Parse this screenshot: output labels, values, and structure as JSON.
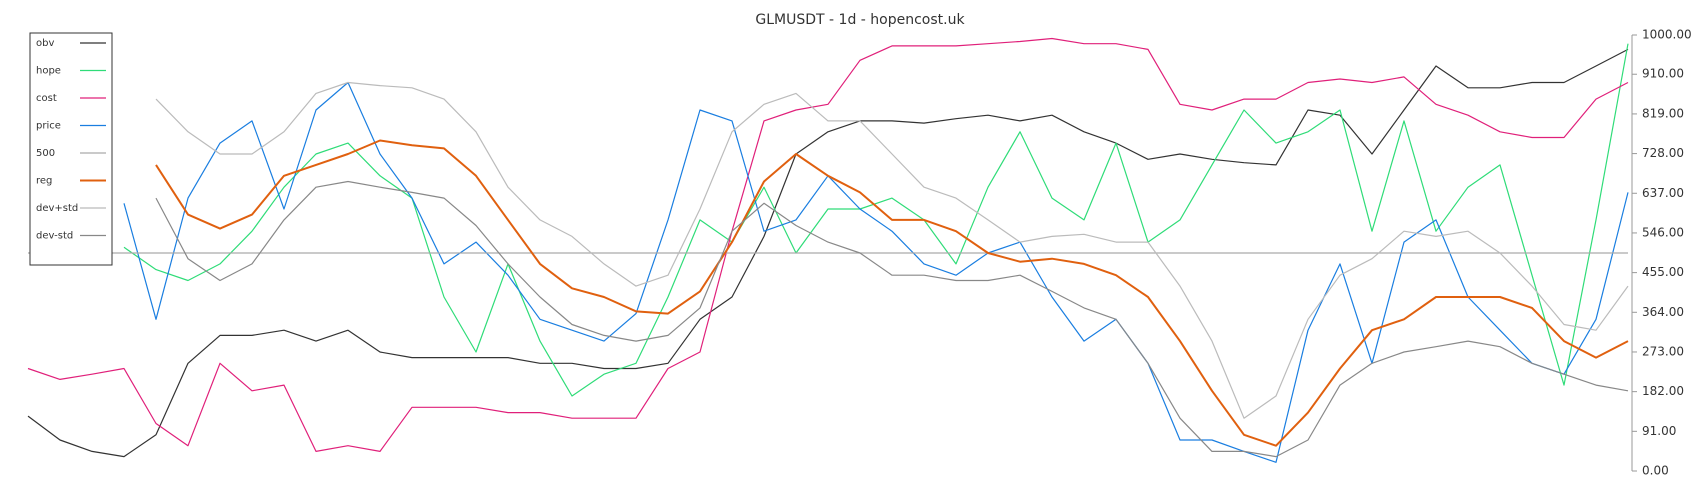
{
  "chart_data": {
    "type": "line",
    "title": "GLMUSDT - 1d - hopencost.uk",
    "ylim": [
      0,
      1000
    ],
    "yticks": [
      {
        "value": 0,
        "label": "0.00"
      },
      {
        "value": 91,
        "label": "91.00"
      },
      {
        "value": 182,
        "label": "182.00"
      },
      {
        "value": 273,
        "label": "273.00"
      },
      {
        "value": 364,
        "label": "364.00"
      },
      {
        "value": 455,
        "label": "455.00"
      },
      {
        "value": 546,
        "label": "546.00"
      },
      {
        "value": 637,
        "label": "637.00"
      },
      {
        "value": 728,
        "label": "728.00"
      },
      {
        "value": 819,
        "label": "819.00"
      },
      {
        "value": 910,
        "label": "910.00"
      },
      {
        "value": 1000,
        "label": "1000.00"
      }
    ],
    "legend": "upper left",
    "series": [
      {
        "name": "obv",
        "color": "#333333",
        "values": [
          126,
          71,
          45,
          33,
          83,
          247,
          311,
          311,
          323,
          298,
          323,
          273,
          260,
          260,
          260,
          260,
          247,
          247,
          235,
          235,
          247,
          348,
          399,
          538,
          727,
          778,
          803,
          803,
          798,
          808,
          816,
          803,
          816,
          778,
          752,
          715,
          727,
          715,
          707,
          702,
          828,
          816,
          727,
          828,
          929,
          879,
          879,
          891,
          891,
          929,
          967
        ]
      },
      {
        "name": "hope",
        "color": "#2fdc78",
        "values": [
          null,
          null,
          null,
          513,
          462,
          437,
          475,
          550,
          651,
          727,
          752,
          677,
          626,
          399,
          273,
          475,
          298,
          172,
          222,
          247,
          399,
          576,
          525,
          651,
          500,
          601,
          601,
          626,
          576,
          475,
          651,
          778,
          626,
          576,
          752,
          525,
          576,
          702,
          828,
          752,
          778,
          828,
          550,
          803,
          550,
          651,
          702,
          449,
          197,
          576,
          980
        ]
      },
      {
        "name": "cost",
        "color": "#e0207a",
        "values": [
          235,
          210,
          222,
          235,
          109,
          58,
          247,
          184,
          197,
          45,
          58,
          45,
          146,
          146,
          146,
          134,
          134,
          121,
          121,
          121,
          235,
          273,
          550,
          803,
          828,
          841,
          942,
          975,
          975,
          975,
          980,
          985,
          992,
          980,
          980,
          967,
          841,
          828,
          853,
          853,
          891,
          899,
          891,
          904,
          841,
          816,
          778,
          765,
          765,
          853,
          891
        ]
      },
      {
        "name": "price",
        "color": "#1a7ee0",
        "values": [
          null,
          null,
          null,
          614,
          348,
          626,
          752,
          803,
          601,
          828,
          891,
          727,
          626,
          475,
          525,
          449,
          348,
          323,
          298,
          361,
          576,
          828,
          803,
          550,
          576,
          677,
          601,
          550,
          475,
          449,
          500,
          525,
          399,
          298,
          348,
          247,
          71,
          71,
          45,
          20,
          323,
          475,
          247,
          525,
          576,
          399,
          323,
          247,
          222,
          348,
          639
        ]
      },
      {
        "name": "500",
        "color": "#aaaaaa",
        "values": [
          500,
          500,
          500,
          500,
          500,
          500,
          500,
          500,
          500,
          500,
          500,
          500,
          500,
          500,
          500,
          500,
          500,
          500,
          500,
          500,
          500,
          500,
          500,
          500,
          500,
          500,
          500,
          500,
          500,
          500,
          500,
          500,
          500,
          500,
          500,
          500,
          500,
          500,
          500,
          500,
          500,
          500,
          500,
          500,
          500,
          500,
          500,
          500,
          500,
          500,
          500
        ]
      },
      {
        "name": "reg",
        "color": "#e0600f",
        "values": [
          null,
          null,
          null,
          null,
          702,
          588,
          556,
          588,
          677,
          702,
          727,
          758,
          747,
          740,
          677,
          576,
          475,
          419,
          399,
          366,
          361,
          412,
          525,
          664,
          727,
          677,
          639,
          576,
          576,
          550,
          500,
          480,
          487,
          475,
          449,
          399,
          298,
          184,
          83,
          58,
          134,
          235,
          323,
          348,
          399,
          399,
          399,
          374,
          298,
          260,
          298
        ]
      },
      {
        "name": "dev+std",
        "color": "#bbbbbb",
        "values": [
          null,
          null,
          null,
          null,
          853,
          778,
          727,
          727,
          778,
          866,
          891,
          884,
          879,
          853,
          778,
          651,
          576,
          538,
          475,
          424,
          449,
          601,
          778,
          841,
          866,
          803,
          803,
          727,
          651,
          626,
          576,
          525,
          538,
          543,
          525,
          525,
          424,
          298,
          121,
          172,
          348,
          449,
          487,
          550,
          538,
          550,
          500,
          424,
          336,
          323,
          424
        ]
      },
      {
        "name": "dev-std",
        "color": "#888888",
        "values": [
          null,
          null,
          null,
          null,
          626,
          487,
          437,
          475,
          576,
          651,
          664,
          651,
          639,
          626,
          563,
          475,
          399,
          336,
          311,
          298,
          311,
          374,
          550,
          614,
          563,
          525,
          500,
          449,
          449,
          437,
          437,
          449,
          412,
          374,
          348,
          247,
          121,
          45,
          45,
          33,
          71,
          197,
          247,
          273,
          285,
          298,
          285,
          247,
          222,
          197,
          184
        ]
      }
    ]
  }
}
